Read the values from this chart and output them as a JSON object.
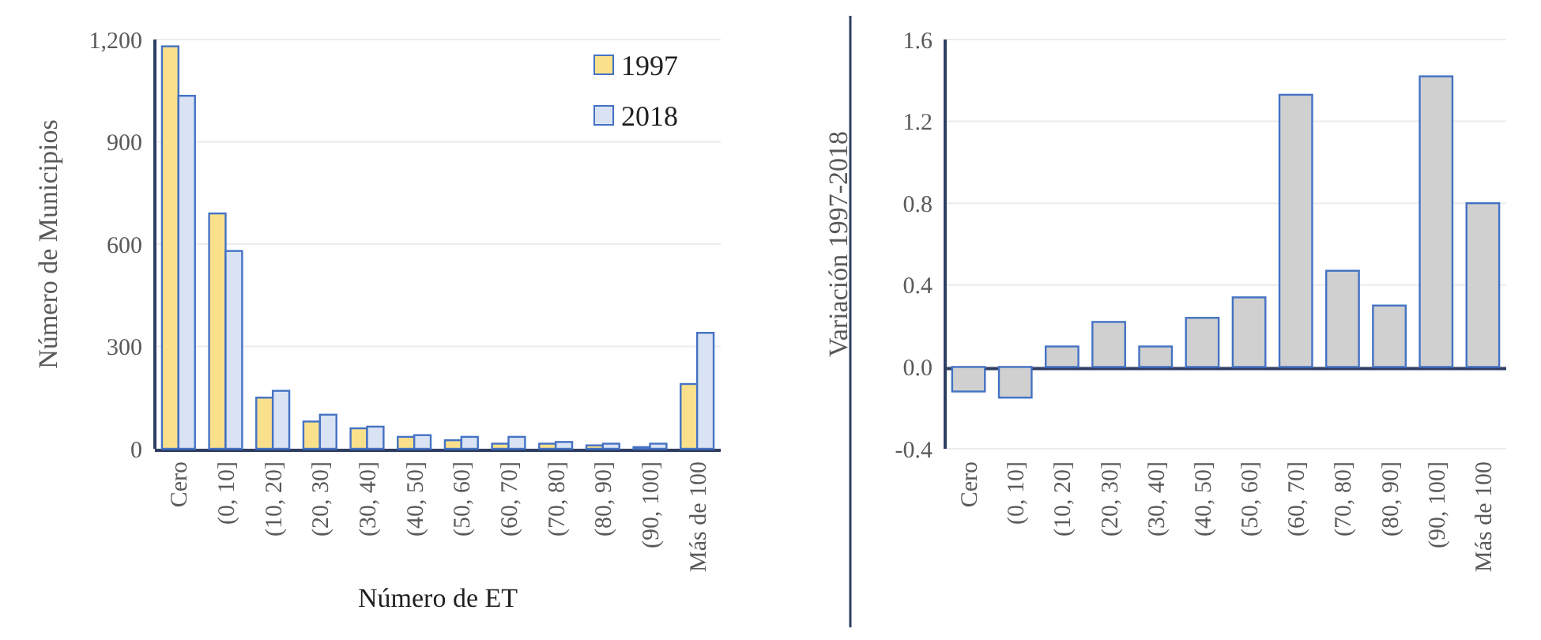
{
  "chart_data": [
    {
      "type": "bar",
      "xlabel": "Número de ET",
      "ylabel": "Número de Municipios",
      "categories": [
        "Cero",
        "(0, 10]",
        "(10, 20]",
        "(20, 30]",
        "(30, 40]",
        "(40, 50]",
        "(50, 60]",
        "(60, 70]",
        "(70, 80]",
        "(80, 90]",
        "(90, 100]",
        "Más de 100"
      ],
      "series": [
        {
          "name": "1997",
          "color": "#fbe08c",
          "values": [
            1180,
            690,
            150,
            80,
            60,
            35,
            25,
            15,
            15,
            10,
            5,
            190
          ]
        },
        {
          "name": "2018",
          "color": "#dae3f3",
          "values": [
            1035,
            580,
            170,
            100,
            65,
            40,
            35,
            35,
            20,
            15,
            15,
            340
          ]
        }
      ],
      "ylim": [
        0,
        1200
      ],
      "yticks": [
        0,
        300,
        600,
        900,
        {
          "value": 1200,
          "label": "1,200"
        }
      ],
      "grid": "y",
      "legend": "top right"
    },
    {
      "type": "bar",
      "ylabel": "Variación 1997-2018",
      "categories": [
        "Cero",
        "(0, 10]",
        "(10, 20]",
        "(20, 30]",
        "(30, 40]",
        "(40, 50]",
        "(50, 60]",
        "(60, 70]",
        "(70, 80]",
        "(80, 90]",
        "(90, 100]",
        "Más de 100"
      ],
      "series": [
        {
          "color": "#d0d0d0",
          "values": [
            -0.12,
            -0.15,
            0.1,
            0.22,
            0.1,
            0.24,
            0.34,
            1.33,
            0.47,
            0.3,
            1.42,
            0.8
          ]
        }
      ],
      "ylim": [
        -0.4,
        1.6
      ],
      "yticks": [
        -0.4,
        {
          "value": 0,
          "label": "0.0"
        },
        0.4,
        0.8,
        1.2,
        1.6
      ],
      "grid": "y"
    }
  ]
}
